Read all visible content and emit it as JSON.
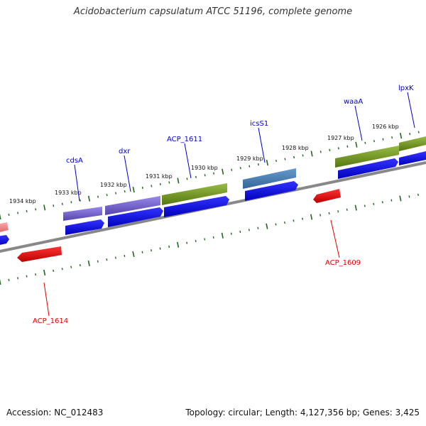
{
  "title": "Acidobacterium capsulatum ATCC 51196, complete genome",
  "footer": {
    "accession": "Accession: NC_012483",
    "summary": "Topology: circular; Length: 4,127,356 bp; Genes: 3,425"
  },
  "ticks": [
    "1934 kbp",
    "1933 kbp",
    "1932 kbp",
    "1931 kbp",
    "1930 kbp",
    "1929 kbp",
    "1928 kbp",
    "1927 kbp",
    "1926 kbp"
  ],
  "genes": [
    {
      "name": "cdsA",
      "strand": "forward",
      "color": "#7766cc"
    },
    {
      "name": "dxr",
      "strand": "forward",
      "color": "#7766cc"
    },
    {
      "name": "ACP_1611",
      "strand": "forward",
      "color": "#779922"
    },
    {
      "name": "icsS1",
      "strand": "forward",
      "color": "#4477aa"
    },
    {
      "name": "waaA",
      "strand": "forward",
      "color": "#779922"
    },
    {
      "name": "lpxK",
      "strand": "forward",
      "color": "#779922"
    },
    {
      "name": "ACP_1609",
      "strand": "reverse",
      "color": "#ee1111"
    },
    {
      "name": "ACP_1614",
      "strand": "reverse",
      "color": "#ee1111"
    }
  ],
  "colors": {
    "backbone": "#888888",
    "tick": "#226622",
    "cds": "#0000ee",
    "forward_label": "#0000cc",
    "reverse_label": "#dd0000",
    "partial_feature": "#ee8888"
  }
}
